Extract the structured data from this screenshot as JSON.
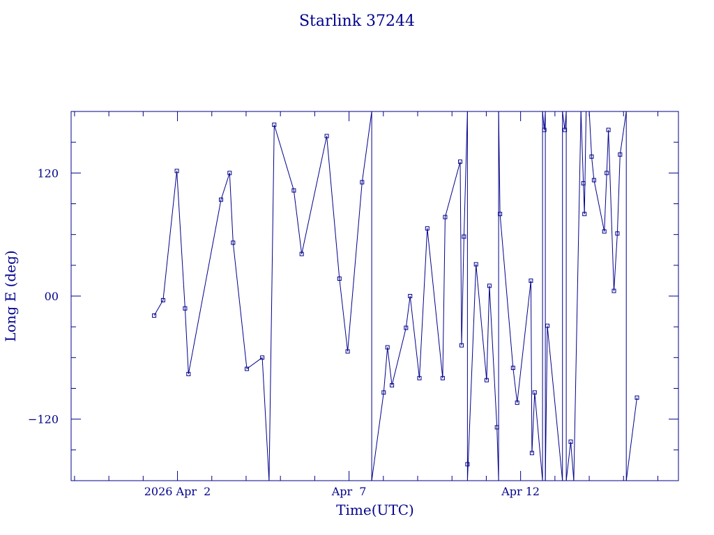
{
  "chart_data": {
    "type": "line",
    "title": "Starlink 37244",
    "xlabel": "Time(UTC)",
    "ylabel": "Long E (deg)",
    "x_unit": "days",
    "xlim": [
      -3.1,
      14.6
    ],
    "ylim": [
      -180,
      180
    ],
    "x_ticks": [
      {
        "x": 0,
        "label": "2026 Apr  2"
      },
      {
        "x": 5,
        "label": "Apr  7"
      },
      {
        "x": 10,
        "label": "Apr 12"
      }
    ],
    "y_ticks": [
      {
        "y": 120,
        "label": "120"
      },
      {
        "y": 0,
        "label": "00"
      },
      {
        "y": -120,
        "label": "−120"
      }
    ],
    "color": "#00008b",
    "grid": false,
    "points": [
      [
        -0.68,
        -19
      ],
      [
        -0.42,
        -4
      ],
      [
        -0.02,
        122
      ],
      [
        0.22,
        -12
      ],
      [
        0.32,
        -76
      ],
      [
        1.27,
        94
      ],
      [
        1.52,
        120
      ],
      [
        1.62,
        52
      ],
      [
        2.02,
        -71
      ],
      [
        2.47,
        -60
      ],
      [
        2.67,
        -180
      ],
      [
        2.82,
        167
      ],
      [
        3.39,
        103
      ],
      [
        3.62,
        41
      ],
      [
        4.35,
        156
      ],
      [
        4.72,
        17
      ],
      [
        4.96,
        -54
      ],
      [
        5.38,
        111
      ],
      [
        5.66,
        180
      ],
      [
        5.66,
        -180
      ],
      [
        6.01,
        -94
      ],
      [
        6.12,
        -50
      ],
      [
        6.25,
        -87
      ],
      [
        6.66,
        -31
      ],
      [
        6.78,
        0
      ],
      [
        7.05,
        -80
      ],
      [
        7.28,
        66
      ],
      [
        7.73,
        -80
      ],
      [
        7.8,
        77
      ],
      [
        8.24,
        131
      ],
      [
        8.28,
        -48
      ],
      [
        8.35,
        58
      ],
      [
        8.45,
        180
      ],
      [
        8.45,
        -164
      ],
      [
        8.45,
        -180
      ],
      [
        8.7,
        31
      ],
      [
        9.01,
        -82
      ],
      [
        9.09,
        10
      ],
      [
        9.31,
        -128
      ],
      [
        9.36,
        -180
      ],
      [
        9.36,
        180
      ],
      [
        9.4,
        80
      ],
      [
        9.78,
        -70
      ],
      [
        9.9,
        -104
      ],
      [
        10.3,
        15
      ],
      [
        10.33,
        -153
      ],
      [
        10.41,
        -94
      ],
      [
        10.64,
        -180
      ],
      [
        10.64,
        180
      ],
      [
        10.69,
        162
      ],
      [
        10.72,
        180
      ],
      [
        10.72,
        -180
      ],
      [
        10.78,
        -29
      ],
      [
        11.22,
        -180
      ],
      [
        11.22,
        180
      ],
      [
        11.29,
        162
      ],
      [
        11.33,
        180
      ],
      [
        11.33,
        -180
      ],
      [
        11.46,
        -142
      ],
      [
        11.55,
        -180
      ],
      [
        11.76,
        180
      ],
      [
        11.83,
        110
      ],
      [
        11.86,
        80
      ],
      [
        11.91,
        180
      ],
      [
        12.0,
        180
      ],
      [
        12.07,
        136
      ],
      [
        12.14,
        113
      ],
      [
        12.44,
        63
      ],
      [
        12.51,
        120
      ],
      [
        12.56,
        162
      ],
      [
        12.72,
        5
      ],
      [
        12.82,
        61
      ],
      [
        12.9,
        138
      ],
      [
        13.08,
        180
      ],
      [
        13.08,
        -180
      ],
      [
        13.39,
        -99
      ]
    ]
  }
}
